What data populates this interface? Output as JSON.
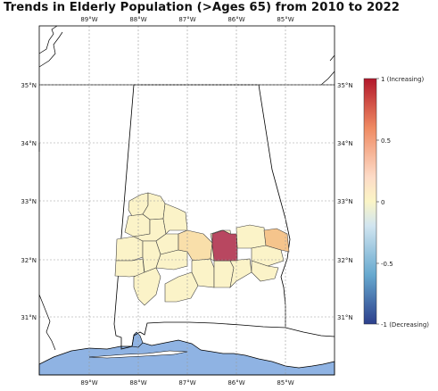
{
  "title": "Trends in Elderly Population (>Ages 65) from 2010 to 2022",
  "longitude_ticks": [
    "89°W",
    "88°W",
    "87°W",
    "86°W",
    "85°W"
  ],
  "latitude_ticks": [
    "35°N",
    "34°N",
    "33°N",
    "32°N",
    "31°N"
  ],
  "colorbar": {
    "top_label": "1 (Increasing)",
    "bottom_label": "-1 (Decreasing)",
    "tick_labels": [
      "1 (Increasing)",
      "0.5",
      "0",
      "-0.5",
      "-1 (Decreasing)"
    ],
    "colors": [
      "#b2182b",
      "#ef8a62",
      "#fddbc7",
      "#fbf5c6",
      "#d1e5f0",
      "#67a9cf",
      "#2c3f8c"
    ]
  },
  "colors": {
    "water": "#8fb3e3",
    "county_light": "#fbf3c8",
    "county_mid": "#f9dfaa",
    "county_orange": "#f5c48c",
    "county_high": "#b84760",
    "gridline": "#9a9a9a"
  }
}
